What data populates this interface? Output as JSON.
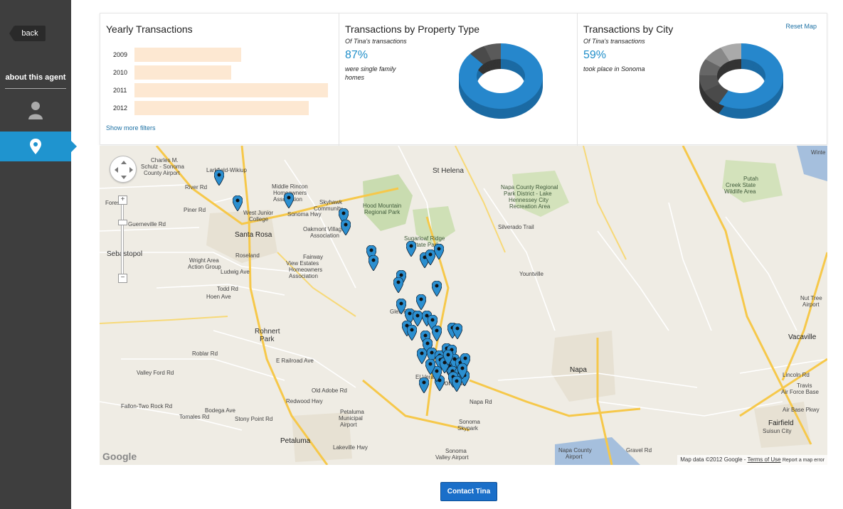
{
  "sidebar": {
    "back_label": "back",
    "about_label": "about this agent",
    "items": [
      {
        "icon": "person-icon",
        "active": false
      },
      {
        "icon": "map-pin-icon",
        "active": true
      }
    ],
    "accent_color": "#1f94cf"
  },
  "yearly": {
    "title": "Yearly Transactions",
    "show_more_label": "Show more filters",
    "rows": [
      {
        "year": "2009",
        "value": 55
      },
      {
        "year": "2010",
        "value": 50
      },
      {
        "year": "2011",
        "value": 100
      },
      {
        "year": "2012",
        "value": 90
      }
    ]
  },
  "property_type": {
    "title": "Transactions by Property Type",
    "subtitle": "Of Tina's transactions",
    "percent": "87%",
    "description": "were single family homes",
    "chart_percent": 87
  },
  "city": {
    "title": "Transactions by City",
    "subtitle": "Of Tina's transactions",
    "percent": "59%",
    "description": "took place in Sonoma",
    "reset_label": "Reset Map",
    "chart_percent": 59
  },
  "map": {
    "labels": {
      "larkfield": "Larkfield-Wikiup",
      "charles": "Charles M.",
      "schulz": "Schulz - Sonoma",
      "county_airport": "County Airport",
      "middle_rincon": "Middle Rincon",
      "homeowners": "Homeowners",
      "association": "Association",
      "skyhawk": "Skyhawk",
      "community": "Community",
      "west_junior": "West Junior",
      "college": "College",
      "santa_rosa": "Santa Rosa",
      "oakmont": "Oakmont Village",
      "oakmont_assoc": "Association",
      "hood_mountain": "Hood Mountain",
      "regional_park": "Regional Park",
      "sugarloaf": "Sugarloaf Ridge",
      "state_park": "State Park",
      "st_helena": "St Helena",
      "napa_county": "Napa County Regional",
      "park_district": "Park District - Lake",
      "hennessey": "Hennessey City",
      "recreation": "Recreation Area",
      "putah": "Putah",
      "putah_creek": "Creek State",
      "wildlife": "Wildlife Area",
      "fairway": "Fairway",
      "view_estates": "View Estates",
      "fw_homeowners": "Homeowners",
      "fw_association": "Association",
      "roseland": "Roseland",
      "wright": "Wright Area",
      "action_group": "Action Group",
      "sebastopol": "Sebastopol",
      "yountville": "Yountville",
      "glen_ellen": "Glen Ellen",
      "rohnert": "Rohnert",
      "park": "Park",
      "el_verano": "El Verano",
      "sonoma": "Sonoma",
      "napa": "Napa",
      "vacaville": "Vacaville",
      "fairfield": "Fairfield",
      "suisun": "Suisun City",
      "petaluma": "Petaluma",
      "petaluma_muni": "Petaluma",
      "municipal": "Municipal",
      "airport": "Airport",
      "sonoma_skypark": "Sonoma",
      "skypark": "Skypark",
      "sonoma_valley": "Sonoma",
      "valley_airport": "Valley Airport",
      "napa_county_airport": "Napa County",
      "napa_airport": "Airport",
      "travis": "Travis",
      "air_force": "Air Force Base",
      "nut_tree": "Nut Tree",
      "nut_airport": "Airport",
      "winters": "Winte",
      "foresr": "Fores",
      "river_rd": "River Rd",
      "piner_rd": "Piner Rd",
      "guerneville_rd": "Guerneville Rd",
      "ludwig": "Ludwig Ave",
      "todd": "Todd Rd",
      "roblar": "Roblar Rd",
      "e_railroad": "E Railroad Ave",
      "old_adobe": "Old Adobe Rd",
      "fallon": "Fallon-Two Rock Rd",
      "bodega": "Bodega Ave",
      "tomales": "Tomales Rd",
      "valley_ford": "Valley Ford Rd",
      "stony_point": "Stony Point Rd",
      "napa_rd": "Napa Rd",
      "redwood": "Redwood Hwy",
      "silverado": "Silverado Trail",
      "lincoln": "Lincoln Rd",
      "air_base": "Air Base Pkwy",
      "gravel": "Gravel Rd",
      "hoen": "Hoen Ave",
      "sonoma_hwy": "Sonoma Hwy",
      "lakeville": "Lakeville Hwy"
    },
    "google_logo": "Google",
    "attribution": "Map data ©2012 Google",
    "terms": "Terms of Use",
    "report": "Report a map error",
    "pin_color": "#2b8fd0",
    "pin_count": 50
  },
  "contact_label": "Contact Tina"
}
